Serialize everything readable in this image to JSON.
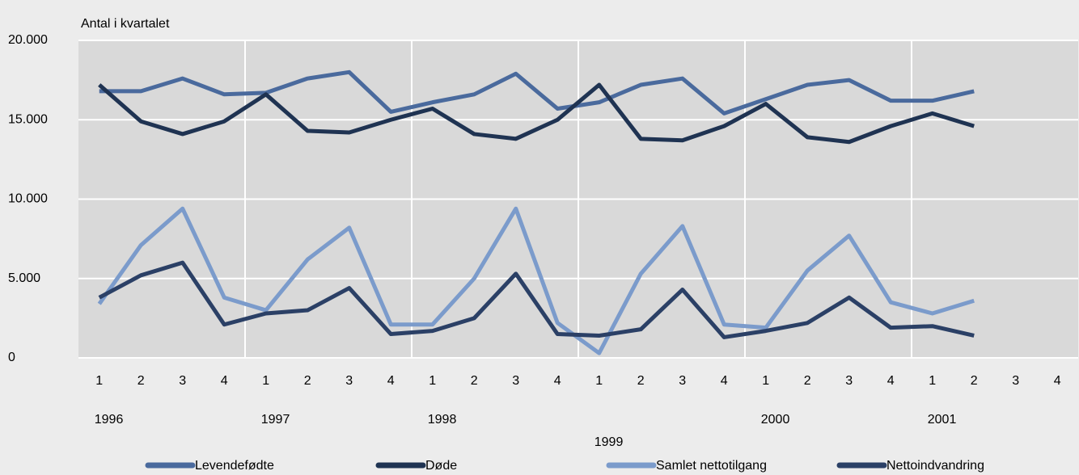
{
  "chart_data": {
    "type": "line",
    "y_label": "Antal i kvartalet",
    "categories": [
      "1",
      "2",
      "3",
      "4",
      "1",
      "2",
      "3",
      "4",
      "1",
      "2",
      "3",
      "4",
      "1",
      "2",
      "3",
      "4",
      "1",
      "2",
      "3",
      "4",
      "1",
      "2",
      "3",
      "4"
    ],
    "years": [
      "1996",
      "1997",
      "1998",
      "1999",
      "2000",
      "2001"
    ],
    "ylim": [
      0,
      20000
    ],
    "yticks": [
      0,
      {
        "value": 5000,
        "label": "5.000"
      },
      {
        "value": 10000,
        "label": "10.000"
      },
      {
        "value": 15000,
        "label": "15.000"
      },
      {
        "value": 20000,
        "label": "20.000"
      }
    ],
    "grid": true,
    "series": [
      {
        "name": "Levendefødte",
        "color": "#4a6a9d",
        "values": [
          16800,
          16800,
          17600,
          16600,
          16700,
          17600,
          18000,
          15500,
          16100,
          16600,
          17900,
          15700,
          16100,
          17200,
          17600,
          15400,
          16300,
          17200,
          17500,
          16200,
          16200,
          16800,
          null,
          null
        ]
      },
      {
        "name": "Døde",
        "color": "#1f3352",
        "values": [
          17200,
          14900,
          14100,
          14900,
          16600,
          14300,
          14200,
          15000,
          15700,
          14100,
          13800,
          15000,
          17200,
          13800,
          13700,
          14600,
          16000,
          13900,
          13600,
          14600,
          15400,
          14600,
          null,
          null
        ]
      },
      {
        "name": "Samlet nettotilgang",
        "color": "#7b9bcb",
        "values": [
          3400,
          7100,
          9400,
          3800,
          3000,
          6200,
          8200,
          2100,
          2100,
          5000,
          9400,
          2200,
          300,
          5300,
          8300,
          2100,
          1900,
          5500,
          7700,
          3500,
          2800,
          3600,
          null,
          null
        ]
      },
      {
        "name": "Nettoindvandring",
        "color": "#2b4066",
        "values": [
          3800,
          5200,
          6000,
          2100,
          2800,
          3000,
          4400,
          1500,
          1700,
          2500,
          5300,
          1500,
          1400,
          1800,
          4300,
          1300,
          1700,
          2200,
          3800,
          1900,
          2000,
          1400,
          null,
          null
        ]
      }
    ]
  }
}
